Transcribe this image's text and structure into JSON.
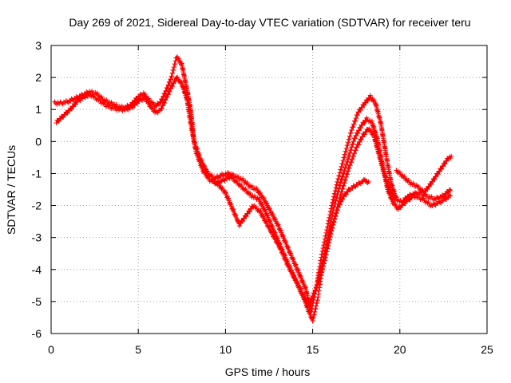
{
  "chart_data": {
    "type": "scatter",
    "title": "Day 269 of 2021, Sidereal Day-to-day VTEC variation (SDTVAR) for receiver teru",
    "xlabel": "GPS time / hours",
    "ylabel": "SDTVAR / TECUs",
    "xlim": [
      0,
      25
    ],
    "ylim": [
      -6,
      3
    ],
    "x_ticks": [
      0,
      5,
      10,
      15,
      20,
      25
    ],
    "y_ticks": [
      3,
      2,
      1,
      0,
      -1,
      -2,
      -3,
      -4,
      -5,
      -6
    ],
    "grid": true,
    "marker": "+",
    "color": "#ff0000",
    "series": [
      {
        "name": "track-upper",
        "points": [
          [
            0.2,
            1.2
          ],
          [
            0.6,
            1.2
          ],
          [
            1.0,
            1.25
          ],
          [
            1.4,
            1.35
          ],
          [
            1.8,
            1.45
          ],
          [
            2.2,
            1.55
          ],
          [
            2.6,
            1.5
          ],
          [
            3.0,
            1.3
          ],
          [
            3.4,
            1.2
          ],
          [
            3.8,
            1.1
          ],
          [
            4.2,
            1.05
          ],
          [
            4.6,
            1.15
          ],
          [
            5.0,
            1.4
          ],
          [
            5.3,
            1.5
          ],
          [
            5.6,
            1.3
          ],
          [
            6.0,
            1.1
          ],
          [
            6.3,
            1.25
          ],
          [
            6.6,
            1.6
          ],
          [
            6.9,
            2.0
          ],
          [
            7.2,
            2.65
          ],
          [
            7.5,
            2.4
          ],
          [
            7.8,
            1.6
          ],
          [
            8.0,
            1.0
          ],
          [
            8.2,
            0.0
          ],
          [
            8.6,
            -0.6
          ],
          [
            9.0,
            -1.0
          ],
          [
            9.4,
            -1.15
          ],
          [
            9.8,
            -1.05
          ],
          [
            10.2,
            -1.0
          ],
          [
            10.6,
            -1.1
          ],
          [
            11.0,
            -1.2
          ],
          [
            11.4,
            -1.4
          ],
          [
            11.8,
            -1.5
          ],
          [
            12.2,
            -1.8
          ],
          [
            12.6,
            -2.2
          ],
          [
            13.0,
            -2.6
          ],
          [
            13.4,
            -3.1
          ],
          [
            13.8,
            -3.6
          ],
          [
            14.2,
            -4.1
          ],
          [
            14.6,
            -4.6
          ],
          [
            14.9,
            -5.3
          ],
          [
            15.2,
            -4.6
          ],
          [
            15.5,
            -3.6
          ],
          [
            15.8,
            -2.8
          ],
          [
            16.1,
            -2.0
          ],
          [
            16.4,
            -1.3
          ],
          [
            16.8,
            -0.5
          ],
          [
            17.2,
            0.3
          ],
          [
            17.6,
            0.9
          ],
          [
            18.0,
            1.2
          ],
          [
            18.3,
            1.4
          ],
          [
            18.6,
            1.2
          ],
          [
            18.9,
            0.6
          ],
          [
            19.2,
            -0.4
          ],
          [
            19.5,
            -1.3
          ],
          [
            19.8,
            -1.8
          ],
          [
            20.1,
            -1.9
          ],
          [
            20.5,
            -1.7
          ],
          [
            21.0,
            -1.6
          ],
          [
            21.5,
            -1.7
          ],
          [
            22.0,
            -1.8
          ],
          [
            22.5,
            -1.7
          ],
          [
            22.9,
            -1.5
          ]
        ]
      },
      {
        "name": "track-middle",
        "points": [
          [
            0.3,
            0.6
          ],
          [
            0.7,
            0.8
          ],
          [
            1.1,
            1.0
          ],
          [
            1.5,
            1.25
          ],
          [
            1.9,
            1.4
          ],
          [
            2.3,
            1.45
          ],
          [
            2.7,
            1.3
          ],
          [
            3.1,
            1.15
          ],
          [
            3.5,
            1.05
          ],
          [
            3.9,
            1.0
          ],
          [
            4.3,
            1.0
          ],
          [
            4.7,
            1.1
          ],
          [
            5.1,
            1.3
          ],
          [
            5.4,
            1.35
          ],
          [
            5.7,
            1.1
          ],
          [
            6.0,
            0.9
          ],
          [
            6.3,
            1.0
          ],
          [
            6.6,
            1.35
          ],
          [
            6.9,
            1.7
          ],
          [
            7.2,
            2.0
          ],
          [
            7.5,
            1.8
          ],
          [
            7.8,
            1.3
          ],
          [
            8.0,
            0.6
          ],
          [
            8.3,
            -0.3
          ],
          [
            8.7,
            -0.9
          ],
          [
            9.1,
            -1.2
          ],
          [
            9.5,
            -1.3
          ],
          [
            9.9,
            -1.2
          ],
          [
            10.3,
            -1.1
          ],
          [
            10.7,
            -1.3
          ],
          [
            11.1,
            -1.5
          ],
          [
            11.5,
            -1.7
          ],
          [
            11.9,
            -1.8
          ],
          [
            12.3,
            -2.2
          ],
          [
            12.7,
            -2.7
          ],
          [
            13.1,
            -3.2
          ],
          [
            13.5,
            -3.7
          ],
          [
            13.9,
            -4.2
          ],
          [
            14.3,
            -4.6
          ],
          [
            14.7,
            -5.2
          ],
          [
            15.0,
            -5.6
          ],
          [
            15.3,
            -4.9
          ],
          [
            15.6,
            -3.8
          ],
          [
            15.9,
            -2.9
          ],
          [
            16.2,
            -2.1
          ],
          [
            16.6,
            -1.3
          ],
          [
            17.0,
            -0.6
          ],
          [
            17.4,
            0.1
          ],
          [
            17.8,
            0.5
          ],
          [
            18.1,
            0.7
          ],
          [
            18.4,
            0.6
          ],
          [
            18.7,
            0.1
          ],
          [
            19.0,
            -0.7
          ],
          [
            19.3,
            -1.5
          ],
          [
            19.6,
            -1.9
          ],
          [
            19.9,
            -2.1
          ],
          [
            20.3,
            -1.9
          ],
          [
            20.8,
            -1.7
          ],
          [
            21.3,
            -1.8
          ],
          [
            21.8,
            -2.0
          ],
          [
            22.3,
            -1.9
          ],
          [
            22.9,
            -1.7
          ]
        ]
      },
      {
        "name": "track-lower",
        "points": [
          [
            9.2,
            -1.2
          ],
          [
            9.6,
            -1.35
          ],
          [
            10.0,
            -1.6
          ],
          [
            10.4,
            -2.1
          ],
          [
            10.8,
            -2.6
          ],
          [
            11.2,
            -2.3
          ],
          [
            11.6,
            -2.0
          ],
          [
            12.0,
            -2.2
          ],
          [
            12.4,
            -2.6
          ],
          [
            12.8,
            -3.0
          ],
          [
            13.2,
            -3.4
          ],
          [
            13.6,
            -3.9
          ],
          [
            14.0,
            -4.3
          ],
          [
            14.4,
            -4.8
          ],
          [
            14.8,
            -5.1
          ],
          [
            15.1,
            -4.7
          ],
          [
            15.4,
            -4.3
          ],
          [
            15.7,
            -3.7
          ],
          [
            16.0,
            -3.0
          ],
          [
            16.3,
            -2.3
          ],
          [
            16.7,
            -1.5
          ],
          [
            17.1,
            -0.8
          ],
          [
            17.5,
            -0.2
          ],
          [
            17.9,
            0.2
          ],
          [
            18.2,
            0.4
          ],
          [
            18.5,
            0.2
          ],
          [
            18.8,
            -0.4
          ],
          [
            19.1,
            -1.0
          ],
          [
            19.4,
            -1.5
          ],
          [
            19.7,
            -1.8
          ]
        ]
      },
      {
        "name": "track-low-arc",
        "points": [
          [
            15.3,
            -4.3
          ],
          [
            15.6,
            -3.7
          ],
          [
            15.9,
            -3.0
          ],
          [
            16.2,
            -2.5
          ],
          [
            16.5,
            -2.0
          ],
          [
            16.8,
            -1.7
          ],
          [
            17.1,
            -1.5
          ],
          [
            17.4,
            -1.4
          ],
          [
            17.7,
            -1.3
          ],
          [
            18.0,
            -1.2
          ],
          [
            18.2,
            -1.3
          ]
        ]
      },
      {
        "name": "track-tail",
        "points": [
          [
            19.8,
            -0.9
          ],
          [
            20.2,
            -1.1
          ],
          [
            20.6,
            -1.3
          ],
          [
            21.0,
            -1.4
          ],
          [
            21.4,
            -1.6
          ],
          [
            21.8,
            -1.3
          ],
          [
            22.8,
            -0.5
          ],
          [
            22.95,
            -0.5
          ]
        ]
      }
    ]
  }
}
